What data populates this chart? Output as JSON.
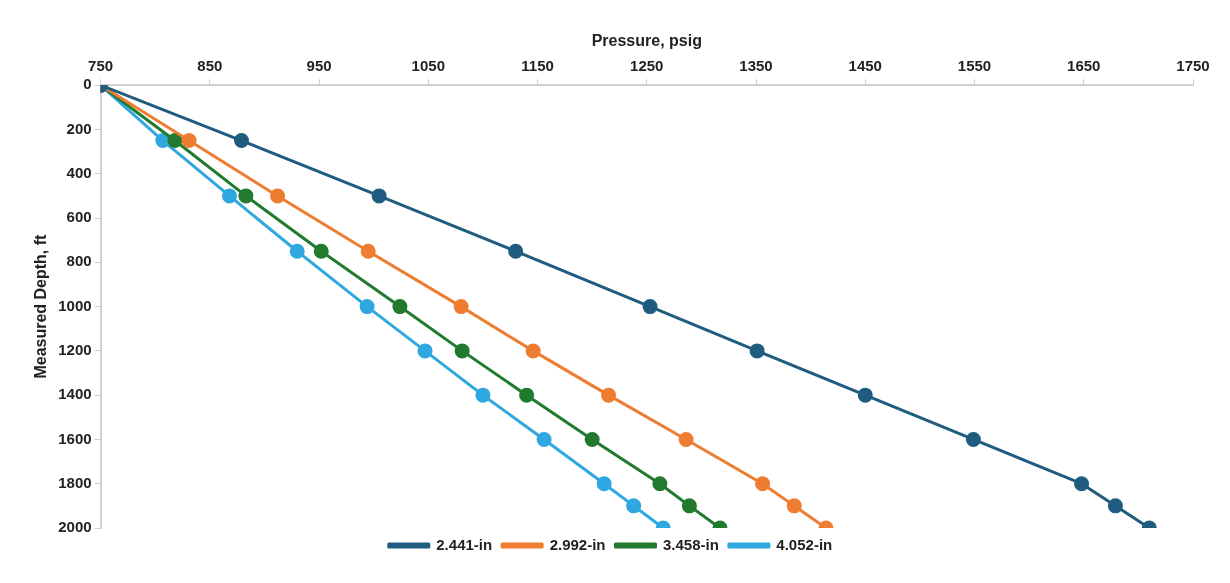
{
  "chart_data": {
    "type": "line",
    "xlabel": "Pressure, psig",
    "ylabel": "Measured Depth, ft",
    "xlim": [
      750,
      1750
    ],
    "xticks": [
      750,
      850,
      950,
      1050,
      1150,
      1250,
      1350,
      1450,
      1550,
      1650,
      1750
    ],
    "ylim": [
      2000,
      0
    ],
    "yticks": [
      0,
      200,
      400,
      600,
      800,
      1000,
      1200,
      1400,
      1600,
      1800,
      2000
    ],
    "grid": false,
    "legend": "bottom",
    "marker": "circle",
    "line_style": "solid",
    "series": [
      {
        "name": "2.441-in",
        "color": "#1f5c7f",
        "x": [
          750,
          879,
          1005,
          1130,
          1253,
          1351,
          1450,
          1549,
          1648,
          1679,
          1710
        ],
        "values": [
          0,
          250,
          500,
          750,
          1000,
          1200,
          1400,
          1600,
          1800,
          1900,
          2000
        ]
      },
      {
        "name": "2.992-in",
        "color": "#ee7d31",
        "x": [
          750,
          831,
          912,
          995,
          1080,
          1146,
          1215,
          1286,
          1356,
          1385,
          1414
        ],
        "values": [
          0,
          250,
          500,
          750,
          1000,
          1200,
          1400,
          1600,
          1800,
          1900,
          2000
        ]
      },
      {
        "name": "3.458-in",
        "color": "#217a2e",
        "x": [
          750,
          818,
          883,
          952,
          1024,
          1081,
          1140,
          1200,
          1262,
          1289,
          1317
        ],
        "values": [
          0,
          250,
          500,
          750,
          1000,
          1200,
          1400,
          1600,
          1800,
          1900,
          2000
        ]
      },
      {
        "name": "4.052-in",
        "color": "#2fa7df",
        "x": [
          750,
          807,
          868,
          930,
          994,
          1047,
          1100,
          1156,
          1211,
          1238,
          1265
        ],
        "values": [
          0,
          250,
          500,
          750,
          1000,
          1200,
          1400,
          1600,
          1800,
          1900,
          2000
        ]
      }
    ]
  }
}
